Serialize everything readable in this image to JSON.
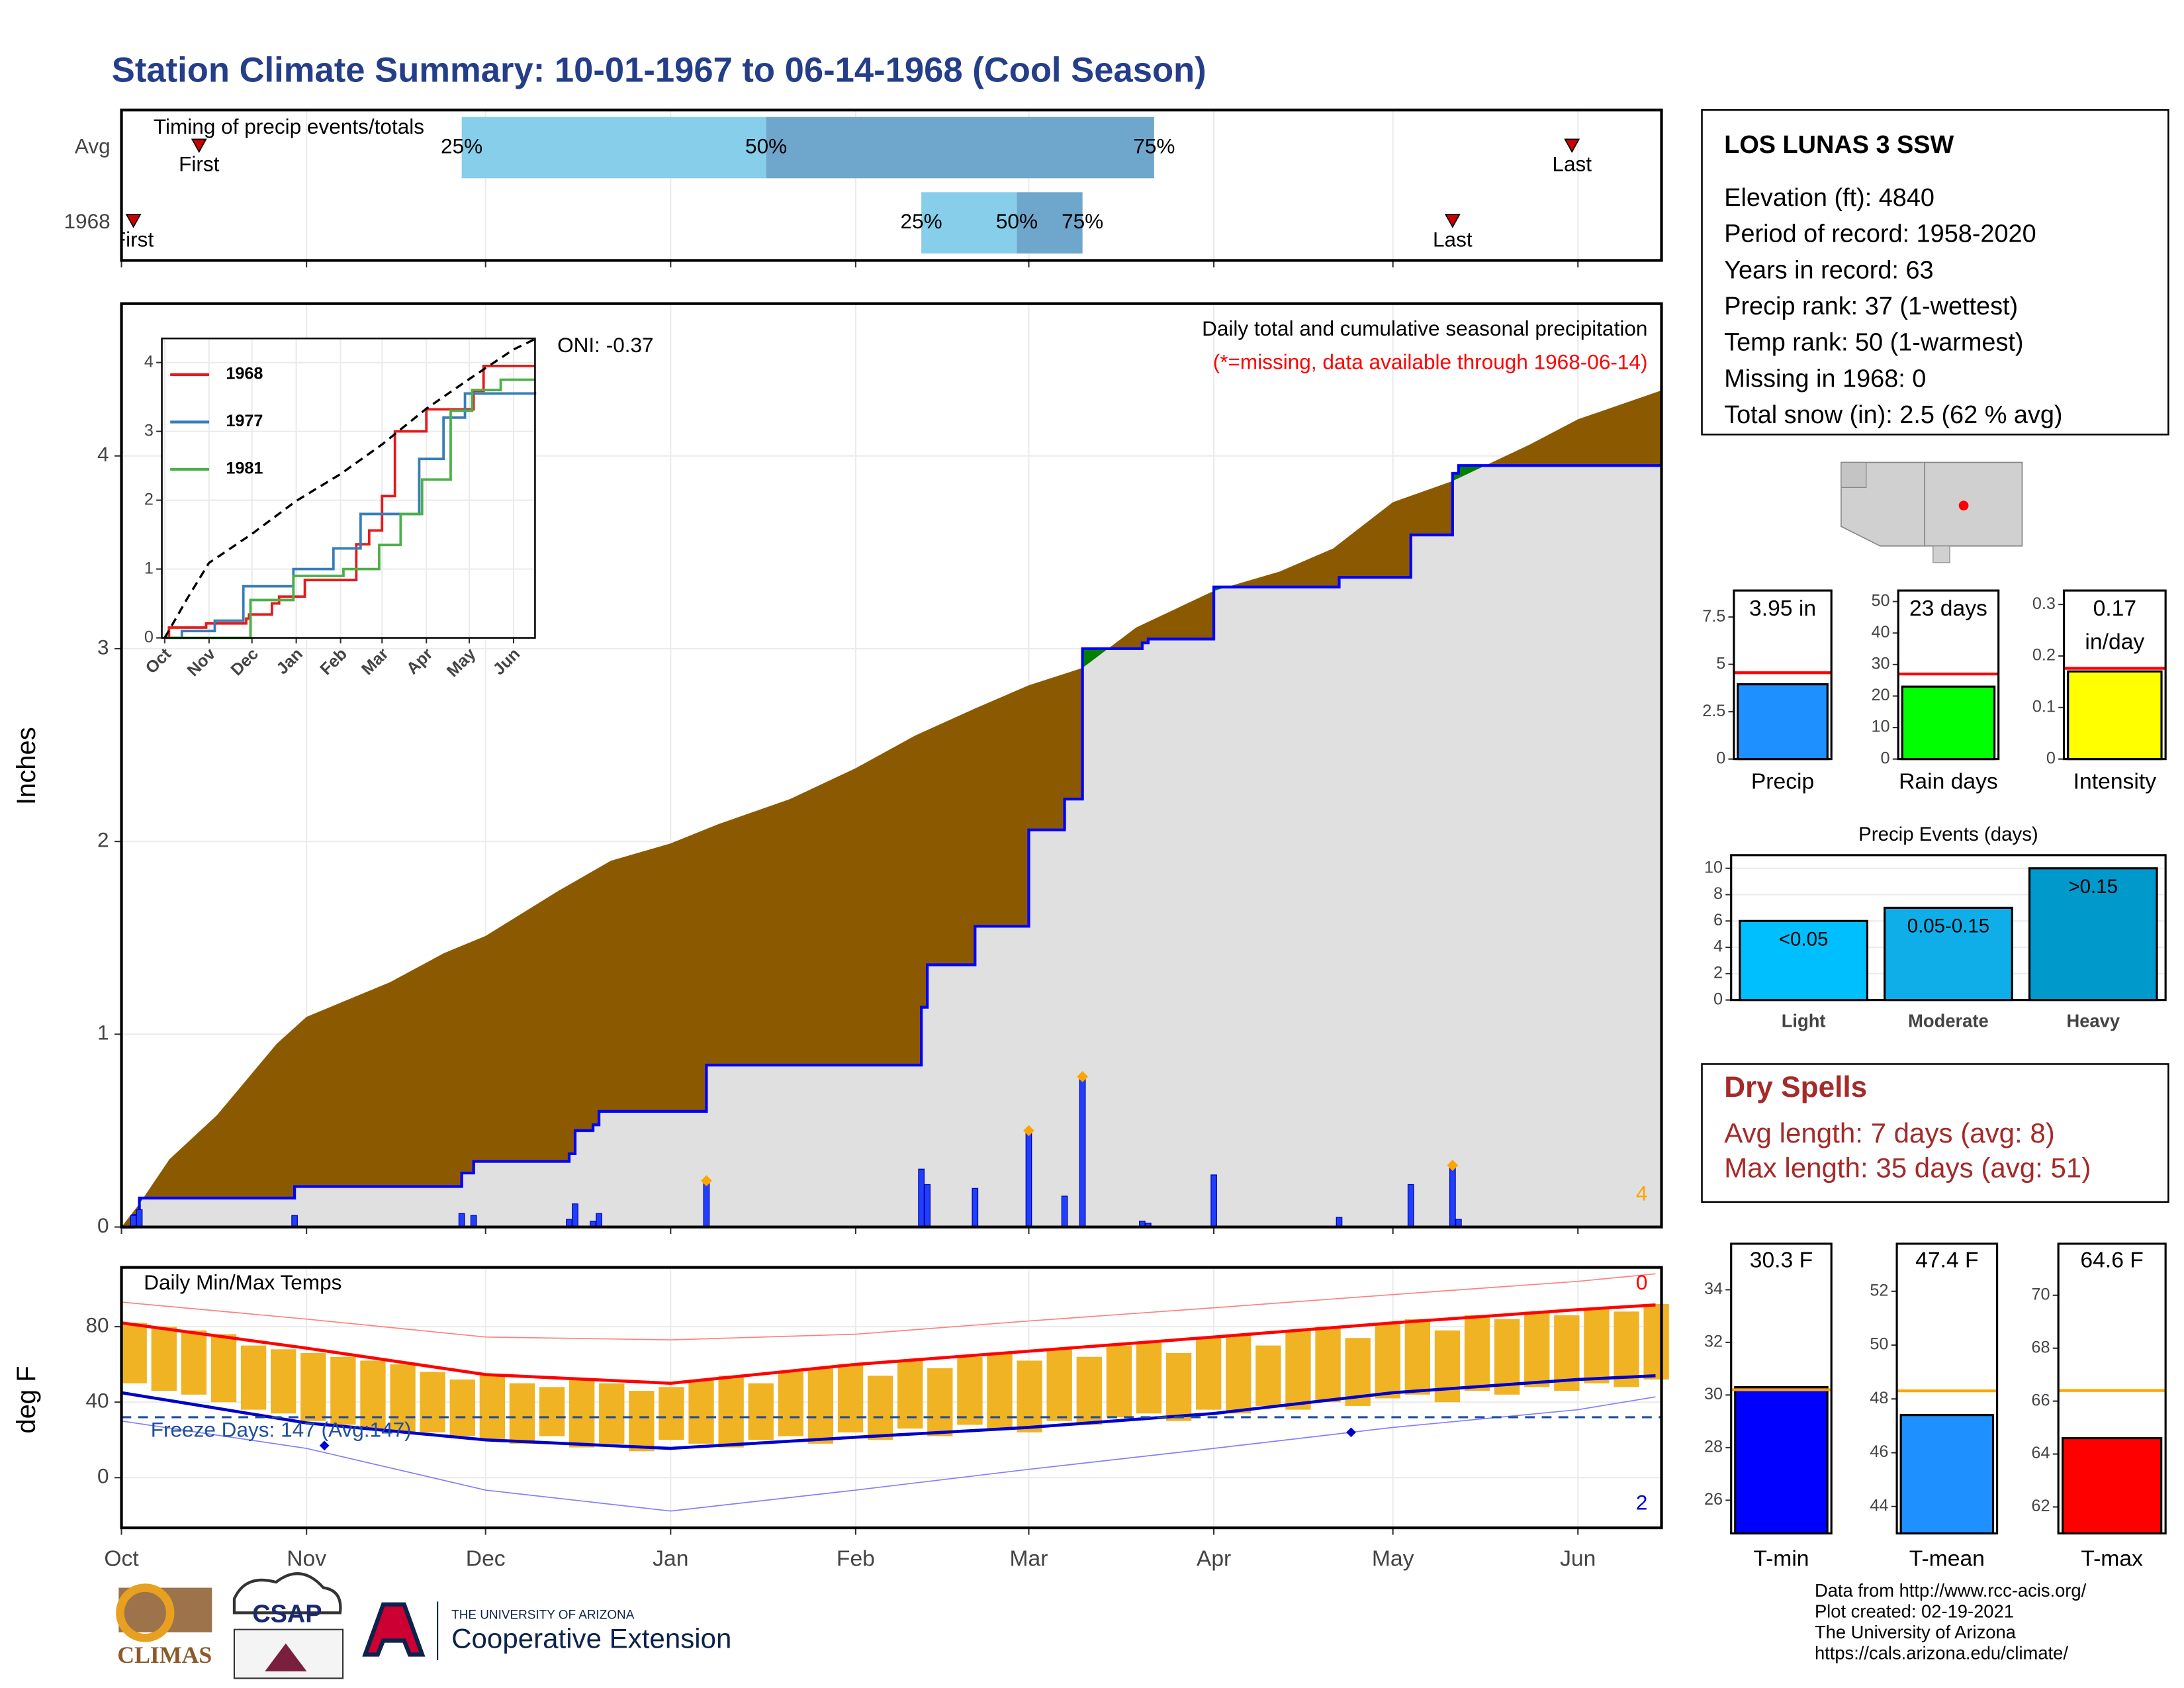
{
  "title": "Station Climate Summary: 10-01-1967 to 06-14-1968 (Cool Season)",
  "station": {
    "name": "LOS LUNAS 3 SSW",
    "lines": [
      "Elevation (ft): 4840",
      "Period of record: 1958-2020",
      "Years in record: 63",
      "Precip rank: 37 (1-wettest)",
      "Temp rank: 50 (1-warmest)",
      "Missing in 1968: 0",
      "Total snow (in): 2.5 (62 % avg)"
    ]
  },
  "dry_spells": {
    "title": "Dry Spells",
    "lines": [
      "Avg length: 7 days (avg: 8)",
      "Max length: 35 days (avg: 51)"
    ]
  },
  "footer": {
    "credits": [
      "Data from http://www.rcc-acis.org/",
      "Plot created: 02-19-2021",
      "The University of Arizona",
      "https://cals.arizona.edu/climate/"
    ],
    "logos": [
      "CLIMAS",
      "CSAP",
      "THE UNIVERSITY OF ARIZONA",
      "Cooperative Extension"
    ]
  },
  "chart_data": [
    {
      "type": "range",
      "title": "Timing of precip events/totals",
      "categories": [
        "Avg",
        "1968"
      ],
      "first": [
        13,
        2
      ],
      "q25": [
        57,
        134
      ],
      "q50": [
        108,
        150
      ],
      "q75": [
        173,
        161
      ],
      "last": [
        243,
        223
      ],
      "quartile_labels": [
        "25%",
        "50%",
        "75%"
      ],
      "first_label": "First",
      "last_label": "Last",
      "xlim": [
        0,
        258
      ],
      "xticks": [
        0,
        31,
        61,
        92,
        123,
        152,
        183,
        213,
        244
      ],
      "colors": [
        "#87ceeb",
        "#6fa6cc"
      ],
      "marker_color": "#cc0000",
      "grid": true
    },
    {
      "type": "area",
      "title": "Daily total and cumulative seasonal precipitation",
      "note": "(*=missing, data available through 1968-06-14)",
      "annotation": "ONI: -0.37",
      "corner_label": "4",
      "ylabel": "Inches",
      "xlim": [
        0,
        258
      ],
      "xticks": [
        0,
        31,
        61,
        92,
        123,
        152,
        183,
        213,
        244
      ],
      "ylim": [
        0,
        4.79
      ],
      "yticks": [
        0,
        1,
        2,
        3,
        4
      ],
      "grid": true,
      "average": {
        "x": [
          0,
          3,
          8,
          16,
          26,
          31,
          45,
          54,
          61,
          73,
          82,
          92,
          100,
          112,
          123,
          133,
          143,
          152,
          161,
          170,
          183,
          194,
          203,
          213,
          223,
          236,
          244,
          258
        ],
        "values": [
          0,
          0.12,
          0.35,
          0.58,
          0.95,
          1.09,
          1.27,
          1.42,
          1.51,
          1.74,
          1.9,
          1.99,
          2.09,
          2.22,
          2.38,
          2.55,
          2.69,
          2.81,
          2.9,
          3.11,
          3.3,
          3.4,
          3.52,
          3.76,
          3.87,
          4.06,
          4.19,
          4.34
        ]
      },
      "events": {
        "x": [
          2,
          3,
          29,
          57,
          59,
          75,
          76,
          79,
          80,
          98,
          134,
          135,
          143,
          152,
          158,
          161,
          171,
          172,
          183,
          204,
          216,
          223,
          224
        ],
        "values": [
          0.06,
          0.09,
          0.06,
          0.07,
          0.06,
          0.04,
          0.12,
          0.03,
          0.07,
          0.24,
          0.3,
          0.22,
          0.2,
          0.5,
          0.16,
          0.78,
          0.03,
          0.02,
          0.27,
          0.05,
          0.22,
          0.32,
          0.04
        ]
      },
      "highlight": [
        98,
        152,
        161,
        223
      ],
      "avg_color": "#8b5a00",
      "above_color": "#008000",
      "base_color": "#e0e0e0",
      "line_color": "#0000ff",
      "bar_color": "#1f3fff",
      "highlight_color": "#ffa500",
      "corner_color": "#ffa500",
      "note_color": "#ff0000"
    },
    {
      "type": "step",
      "xlim": [
        -2,
        259
      ],
      "ylim": [
        0,
        4.35
      ],
      "yticks": [
        0,
        1,
        2,
        3,
        4
      ],
      "xticks": [
        {
          "value": 0,
          "label": "Oct"
        },
        {
          "value": 31,
          "label": "Nov"
        },
        {
          "value": 61,
          "label": "Dec"
        },
        {
          "value": 92,
          "label": "Jan"
        },
        {
          "value": 123,
          "label": "Feb"
        },
        {
          "value": 152,
          "label": "Mar"
        },
        {
          "value": 183,
          "label": "Apr"
        },
        {
          "value": 213,
          "label": "May"
        },
        {
          "value": 244,
          "label": "Jun"
        }
      ],
      "legend": "top-left",
      "series": [
        {
          "name": "1968",
          "color": "#e41a1c",
          "x": [
            0,
            3,
            29,
            57,
            59,
            75,
            80,
            98,
            134,
            143,
            152,
            161,
            183,
            216,
            223,
            259
          ],
          "values": [
            0,
            0.15,
            0.21,
            0.28,
            0.34,
            0.5,
            0.6,
            0.84,
            1.36,
            1.56,
            2.06,
            3.0,
            3.32,
            3.59,
            3.95,
            3.95
          ]
        },
        {
          "name": "1977",
          "color": "#377eb8",
          "x": [
            0,
            12,
            35,
            55,
            90,
            118,
            137,
            160,
            178,
            195,
            210,
            259
          ],
          "values": [
            0,
            0.1,
            0.25,
            0.75,
            1.0,
            1.3,
            1.8,
            1.8,
            2.6,
            3.2,
            3.55,
            3.57
          ]
        },
        {
          "name": "1981",
          "color": "#4daf4a",
          "x": [
            0,
            57,
            60,
            90,
            125,
            150,
            165,
            180,
            200,
            215,
            235,
            259
          ],
          "values": [
            0,
            0,
            0.55,
            0.9,
            1.0,
            1.35,
            1.8,
            2.3,
            3.3,
            3.6,
            3.75,
            3.75
          ]
        }
      ],
      "average": {
        "color": "#000000",
        "x": [
          0,
          16,
          31,
          61,
          92,
          123,
          152,
          183,
          213,
          244,
          259
        ],
        "values": [
          0,
          0.58,
          1.09,
          1.51,
          1.99,
          2.38,
          2.81,
          3.33,
          3.76,
          4.19,
          4.34
        ]
      }
    },
    {
      "type": "temps",
      "title": "Daily Min/Max Temps",
      "ylabel": "deg F",
      "annotation": "Freeze Days: 147 (Avg:147)",
      "freeze_line": 32,
      "freeze_color": "#1f4e9f",
      "corner_labels": [
        {
          "text": "0",
          "color": "#ff0000"
        },
        {
          "text": "2",
          "color": "#0000cc"
        }
      ],
      "xlim": [
        0,
        258
      ],
      "xticks": [
        {
          "value": 0,
          "label": "Oct"
        },
        {
          "value": 31,
          "label": "Nov"
        },
        {
          "value": 61,
          "label": "Dec"
        },
        {
          "value": 92,
          "label": "Jan"
        },
        {
          "value": 123,
          "label": "Feb"
        },
        {
          "value": 152,
          "label": "Mar"
        },
        {
          "value": 183,
          "label": "Apr"
        },
        {
          "value": 213,
          "label": "May"
        },
        {
          "value": 244,
          "label": "Jun"
        }
      ],
      "ylim": [
        -26.6,
        111.4
      ],
      "yticks": [
        0,
        40,
        80
      ],
      "grid": true,
      "bar_color": "#f0b323",
      "bars": {
        "x": [
          0,
          5,
          10,
          15,
          20,
          25,
          30,
          35,
          40,
          45,
          50,
          55,
          60,
          65,
          70,
          75,
          80,
          85,
          90,
          95,
          100,
          105,
          110,
          115,
          120,
          125,
          130,
          135,
          140,
          145,
          150,
          155,
          160,
          165,
          170,
          175,
          180,
          185,
          190,
          195,
          200,
          205,
          210,
          215,
          220,
          225,
          230,
          235,
          240,
          245,
          250,
          255
        ],
        "highs": [
          82,
          80,
          78,
          76,
          70,
          68,
          66,
          64,
          62,
          60,
          56,
          52,
          54,
          50,
          48,
          52,
          50,
          46,
          48,
          52,
          54,
          50,
          56,
          58,
          60,
          54,
          62,
          58,
          64,
          66,
          62,
          68,
          64,
          70,
          72,
          66,
          74,
          76,
          70,
          78,
          80,
          74,
          82,
          84,
          78,
          86,
          84,
          88,
          86,
          90,
          88,
          92
        ],
        "lows": [
          50,
          46,
          44,
          40,
          36,
          34,
          30,
          28,
          26,
          24,
          24,
          22,
          20,
          18,
          22,
          16,
          18,
          14,
          20,
          18,
          16,
          20,
          22,
          18,
          24,
          20,
          26,
          22,
          28,
          26,
          24,
          30,
          28,
          32,
          34,
          30,
          36,
          34,
          38,
          36,
          40,
          38,
          42,
          44,
          40,
          46,
          44,
          48,
          46,
          50,
          48,
          52
        ]
      },
      "lines": [
        {
          "color": "#ff0000",
          "width": 2.2,
          "x": [
            0,
            31,
            61,
            92,
            123,
            152,
            183,
            213,
            244,
            257
          ],
          "values": [
            82,
            68.6,
            54.6,
            50,
            60,
            67,
            74.5,
            82,
            89,
            91.5
          ]
        },
        {
          "color": "#0000cc",
          "width": 2.2,
          "x": [
            0,
            31,
            61,
            92,
            123,
            152,
            183,
            213,
            244,
            257
          ],
          "values": [
            45,
            29,
            20,
            15.5,
            21.4,
            26.6,
            34,
            45,
            52,
            54
          ]
        },
        {
          "color": "#ff8080",
          "width": 0.8,
          "x": [
            0,
            31,
            61,
            92,
            123,
            152,
            183,
            213,
            244,
            257
          ],
          "values": [
            93,
            84,
            74.5,
            73,
            76,
            83,
            90,
            97,
            104,
            108
          ]
        },
        {
          "color": "#8080ff",
          "width": 0.8,
          "x": [
            0,
            31,
            61,
            92,
            123,
            152,
            183,
            213,
            244,
            257
          ],
          "values": [
            30,
            15.5,
            -6.6,
            -17.7,
            -6.6,
            4.4,
            15.5,
            26.6,
            36,
            42.8
          ]
        }
      ],
      "markers": {
        "color": "#0000cc",
        "x": [
          34,
          206
        ],
        "values": [
          17,
          24
        ]
      }
    },
    {
      "type": "bar",
      "categories": [
        "Precip"
      ],
      "values": [
        3.95
      ],
      "value_labels": [
        "3.95 in"
      ],
      "avg": 4.56,
      "color": "#1e90ff",
      "avg_color": "#ff0000",
      "ylim": [
        0,
        8.9
      ],
      "yticks": [
        0,
        2.5,
        5,
        7.5
      ]
    },
    {
      "type": "bar",
      "categories": [
        "Rain days"
      ],
      "values": [
        23
      ],
      "value_labels": [
        "23 days"
      ],
      "avg": 27,
      "color": "#00ff00",
      "avg_color": "#ff0000",
      "ylim": [
        0,
        53.5
      ],
      "yticks": [
        0,
        10,
        20,
        30,
        40,
        50
      ]
    },
    {
      "type": "bar",
      "categories": [
        "Intensity"
      ],
      "values": [
        0.17
      ],
      "value_labels": [
        "0.17 in/day"
      ],
      "avg": 0.176,
      "color": "#ffff00",
      "avg_color": "#ff0000",
      "ylim": [
        0,
        0.327
      ],
      "yticks": [
        0,
        0.1,
        0.2,
        0.3
      ]
    },
    {
      "type": "bar",
      "title": "Precip Events (days)",
      "categories": [
        "Light",
        "Moderate",
        "Heavy"
      ],
      "values": [
        6,
        7,
        10
      ],
      "bar_labels": [
        "<0.05",
        "0.05-0.15",
        ">0.15"
      ],
      "colors": [
        "#00bfff",
        "#10aee8",
        "#0099cc"
      ],
      "ylim": [
        0,
        11
      ],
      "yticks": [
        0,
        2,
        4,
        6,
        8,
        10
      ],
      "grid": true
    },
    {
      "type": "bar",
      "categories": [
        "T-min"
      ],
      "values": [
        30.3
      ],
      "value_labels": [
        "30.3 F"
      ],
      "avg": 30.2,
      "color": "#0000ff",
      "avg_color": "#ffa500",
      "ylim": [
        24.74,
        35.75
      ],
      "yticks": [
        26,
        28,
        30,
        32,
        34
      ]
    },
    {
      "type": "bar",
      "categories": [
        "T-mean"
      ],
      "values": [
        47.4
      ],
      "value_labels": [
        "47.4 F"
      ],
      "avg": 48.3,
      "color": "#1e90ff",
      "avg_color": "#ffa500",
      "ylim": [
        43.0,
        53.77
      ],
      "yticks": [
        44,
        46,
        48,
        50,
        52
      ]
    },
    {
      "type": "bar",
      "categories": [
        "T-max"
      ],
      "values": [
        64.6
      ],
      "value_labels": [
        "64.6 F"
      ],
      "avg": 66.4,
      "color": "#ff0000",
      "avg_color": "#ffa500",
      "ylim": [
        61.0,
        71.95
      ],
      "yticks": [
        62,
        64,
        66,
        68,
        70
      ]
    }
  ]
}
